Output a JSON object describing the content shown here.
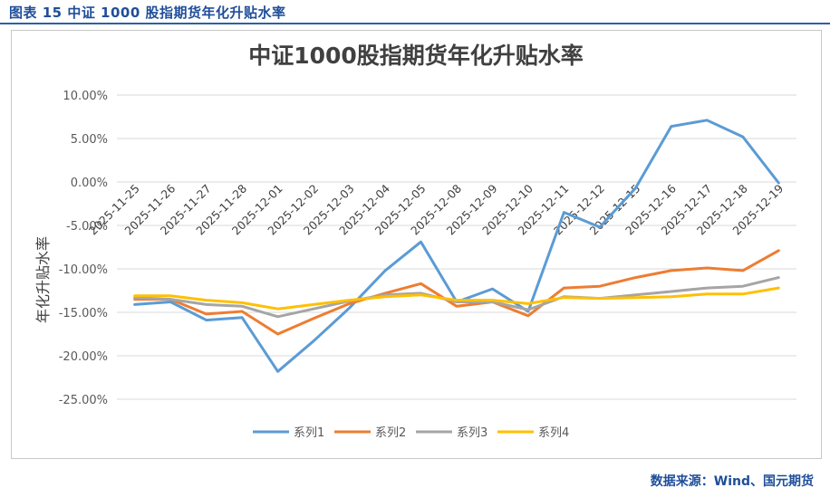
{
  "caption": "图表 15  中证 1000 股指期货年化升贴水率",
  "source": "数据来源：Wind、国元期货",
  "chart_data": {
    "type": "line",
    "title": "中证1000股指期货年化升贴水率",
    "xlabel": "",
    "ylabel": "年化升贴水率",
    "ylim": [
      -0.25,
      0.1
    ],
    "yticks": [
      0.1,
      0.05,
      0.0,
      -0.05,
      -0.1,
      -0.15,
      -0.2,
      -0.25
    ],
    "ytick_labels": [
      "10.00%",
      "5.00%",
      "0.00%",
      "-5.00%",
      "-10.00%",
      "-15.00%",
      "-20.00%",
      "-25.00%"
    ],
    "grid": true,
    "legend": "bottom",
    "categories": [
      "2025-11-25",
      "2025-11-26",
      "2025-11-27",
      "2025-11-28",
      "2025-12-01",
      "2025-12-02",
      "2025-12-03",
      "2025-12-04",
      "2025-12-05",
      "2025-12-08",
      "2025-12-09",
      "2025-12-10",
      "2025-12-11",
      "2025-12-12",
      "2025-12-15",
      "2025-12-16",
      "2025-12-17",
      "2025-12-18",
      "2025-12-19"
    ],
    "series": [
      {
        "name": "系列1",
        "color": "#5b9bd5",
        "values": [
          -0.141,
          -0.138,
          -0.159,
          -0.156,
          -0.218,
          -0.183,
          -0.145,
          -0.102,
          -0.069,
          -0.138,
          -0.123,
          -0.149,
          -0.035,
          -0.052,
          -0.007,
          0.064,
          0.071,
          0.052,
          -0.001
        ]
      },
      {
        "name": "系列2",
        "color": "#ed7d31",
        "values": [
          -0.135,
          -0.135,
          -0.152,
          -0.149,
          -0.175,
          -0.157,
          -0.14,
          -0.128,
          -0.117,
          -0.143,
          -0.138,
          -0.154,
          -0.122,
          -0.12,
          -0.11,
          -0.102,
          -0.099,
          -0.102,
          -0.079
        ]
      },
      {
        "name": "系列3",
        "color": "#a5a5a5",
        "values": [
          -0.133,
          -0.135,
          -0.141,
          -0.143,
          -0.155,
          -0.146,
          -0.137,
          -0.13,
          -0.128,
          -0.138,
          -0.138,
          -0.147,
          -0.132,
          -0.134,
          -0.13,
          -0.126,
          -0.122,
          -0.12,
          -0.11
        ]
      },
      {
        "name": "系列4",
        "color": "#ffc000",
        "values": [
          -0.131,
          -0.131,
          -0.136,
          -0.139,
          -0.146,
          -0.141,
          -0.136,
          -0.132,
          -0.13,
          -0.136,
          -0.136,
          -0.14,
          -0.133,
          -0.134,
          -0.133,
          -0.132,
          -0.129,
          -0.129,
          -0.122
        ]
      }
    ]
  }
}
